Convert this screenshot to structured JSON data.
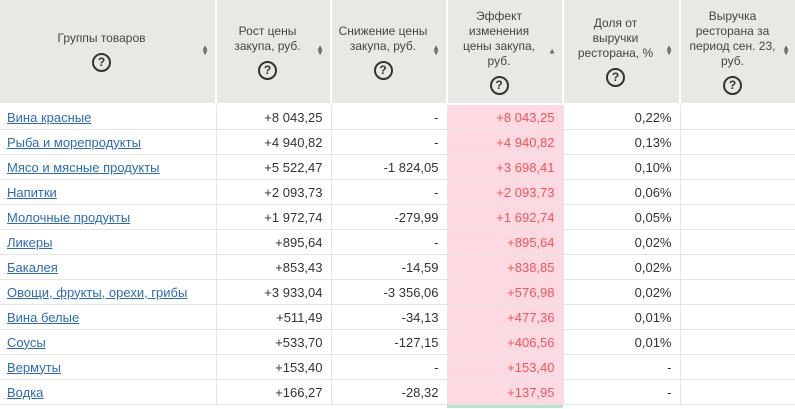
{
  "columns": [
    {
      "label": "Группы товаров",
      "sort": "both"
    },
    {
      "label": "Рост цены закупа, руб.",
      "sort": "both"
    },
    {
      "label": "Снижение цены закупа, руб.",
      "sort": "both"
    },
    {
      "label": "Эффект изменения цены закупа, руб.",
      "sort": "asc"
    },
    {
      "label": "Доля от выручки ресторана, %",
      "sort": "both"
    },
    {
      "label": "Выручка ресторана за период сен. 23, руб.",
      "sort": "both"
    }
  ],
  "help_symbol": "?",
  "rows": [
    {
      "group": "Вина красные",
      "growth": "+8 043,25",
      "decrease": "-",
      "effect": "+8 043,25",
      "share": "0,22%",
      "revenue": ""
    },
    {
      "group": "Рыба и морепродукты",
      "growth": "+4 940,82",
      "decrease": "-",
      "effect": "+4 940,82",
      "share": "0,13%",
      "revenue": ""
    },
    {
      "group": "Мясо и мясные продукты",
      "growth": "+5 522,47",
      "decrease": "-1 824,05",
      "effect": "+3 698,41",
      "share": "0,10%",
      "revenue": ""
    },
    {
      "group": "Напитки",
      "growth": "+2 093,73",
      "decrease": "-",
      "effect": "+2 093,73",
      "share": "0,06%",
      "revenue": ""
    },
    {
      "group": "Молочные продукты",
      "growth": "+1 972,74",
      "decrease": "-279,99",
      "effect": "+1 692,74",
      "share": "0,05%",
      "revenue": ""
    },
    {
      "group": "Ликеры",
      "growth": "+895,64",
      "decrease": "-",
      "effect": "+895,64",
      "share": "0,02%",
      "revenue": ""
    },
    {
      "group": "Бакалея",
      "growth": "+853,43",
      "decrease": "-14,59",
      "effect": "+838,85",
      "share": "0,02%",
      "revenue": ""
    },
    {
      "group": "Овощи, фрукты, орехи, грибы",
      "growth": "+3 933,04",
      "decrease": "-3 356,06",
      "effect": "+576,98",
      "share": "0,02%",
      "revenue": ""
    },
    {
      "group": "Вина белые",
      "growth": "+511,49",
      "decrease": "-34,13",
      "effect": "+477,36",
      "share": "0,01%",
      "revenue": ""
    },
    {
      "group": "Соусы",
      "growth": "+533,70",
      "decrease": "-127,15",
      "effect": "+406,56",
      "share": "0,01%",
      "revenue": ""
    },
    {
      "group": "Вермуты",
      "growth": "+153,40",
      "decrease": "-",
      "effect": "+153,40",
      "share": "-",
      "revenue": ""
    },
    {
      "group": "Водка",
      "growth": "+166,27",
      "decrease": "-28,32",
      "effect": "+137,95",
      "share": "-",
      "revenue": ""
    }
  ],
  "colors": {
    "header_bg": "#e9e8e3",
    "effect_positive_bg": "#fdd9e1",
    "effect_positive_text": "#f2545b",
    "effect_negative_bg": "#b7e3cc",
    "link": "#2a6cb8"
  }
}
